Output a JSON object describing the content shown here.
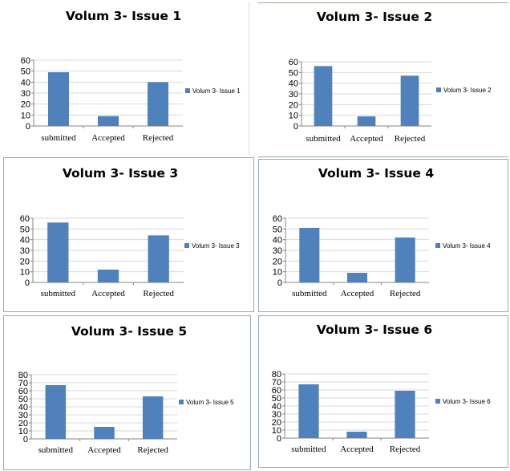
{
  "style": {
    "bar_color": "#4f81bd",
    "axis_color": "#868686",
    "grid_color": "#d9d9d9",
    "panel_border": "#9aa8b8"
  },
  "chart_data": [
    {
      "type": "bar",
      "title": "Volum 3- Issue 1",
      "categories": [
        "submitted",
        "Accepted",
        "Rejected"
      ],
      "series": [
        {
          "name": "Volum 3- Issue 1",
          "values": [
            49,
            9,
            40
          ]
        }
      ],
      "ylim": [
        0,
        60
      ],
      "yticks": [
        0,
        10,
        20,
        30,
        40,
        50,
        60
      ],
      "grid": true,
      "legend": "right"
    },
    {
      "type": "bar",
      "title": "Volum 3- Issue 2",
      "categories": [
        "submitted",
        "Accepted",
        "Rejected"
      ],
      "series": [
        {
          "name": "Volum 3- Issue 2",
          "values": [
            56,
            9,
            47
          ]
        }
      ],
      "ylim": [
        0,
        60
      ],
      "yticks": [
        0,
        10,
        20,
        30,
        40,
        50,
        60
      ],
      "grid": true,
      "legend": "right"
    },
    {
      "type": "bar",
      "title": "Volum 3- Issue 3",
      "categories": [
        "submitted",
        "Accepted",
        "Rejected"
      ],
      "series": [
        {
          "name": "Volum 3- Issue 3",
          "values": [
            56,
            12,
            44
          ]
        }
      ],
      "ylim": [
        0,
        60
      ],
      "yticks": [
        0,
        10,
        20,
        30,
        40,
        50,
        60
      ],
      "grid": true,
      "legend": "right"
    },
    {
      "type": "bar",
      "title": "Volum 3- Issue 4",
      "categories": [
        "submitted",
        "Accepted",
        "Rejected"
      ],
      "series": [
        {
          "name": "Volum 3- Issue 4",
          "values": [
            51,
            9,
            42
          ]
        }
      ],
      "ylim": [
        0,
        60
      ],
      "yticks": [
        0,
        10,
        20,
        30,
        40,
        50,
        60
      ],
      "grid": true,
      "legend": "right"
    },
    {
      "type": "bar",
      "title": "Volum 3- Issue 5",
      "categories": [
        "submitted",
        "Accepted",
        "Rejected"
      ],
      "series": [
        {
          "name": "Volum 3- Issue 5",
          "values": [
            67,
            15,
            53
          ]
        }
      ],
      "ylim": [
        0,
        80
      ],
      "yticks": [
        0,
        10,
        20,
        30,
        40,
        50,
        60,
        70,
        80
      ],
      "grid": true,
      "legend": "right"
    },
    {
      "type": "bar",
      "title": "Volum 3- Issue 6",
      "categories": [
        "submitted",
        "Accepted",
        "Rejected"
      ],
      "series": [
        {
          "name": "Volum 3- Issue 6",
          "values": [
            67,
            8,
            59
          ]
        }
      ],
      "ylim": [
        0,
        80
      ],
      "yticks": [
        0,
        10,
        20,
        30,
        40,
        50,
        60,
        70,
        80
      ],
      "grid": true,
      "legend": "right"
    }
  ]
}
